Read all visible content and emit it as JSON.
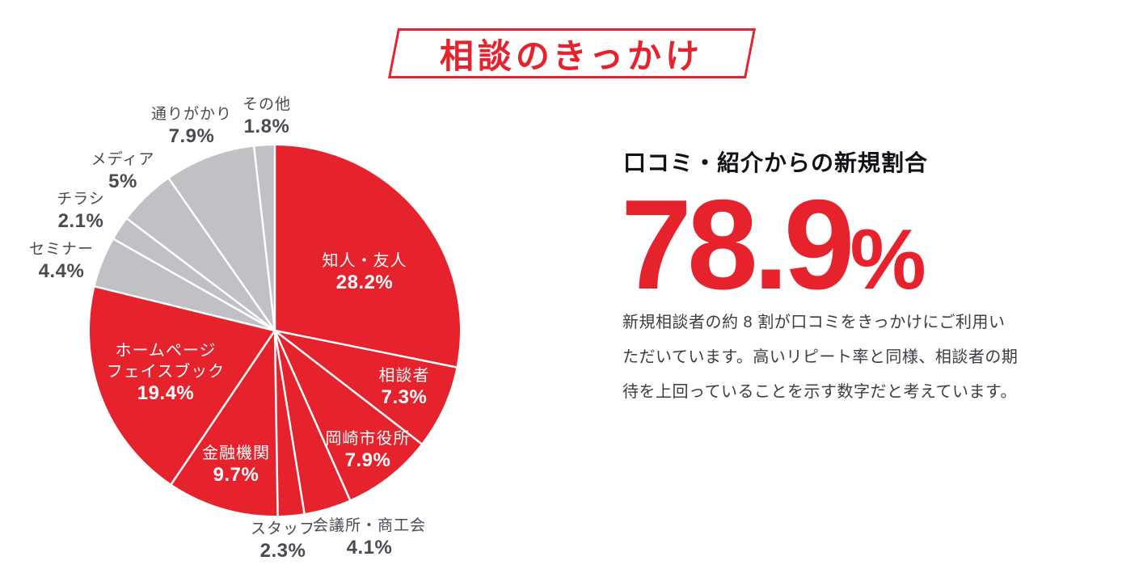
{
  "banner": {
    "title": "相談のきっかけ",
    "accent_color": "#e6232d"
  },
  "panel": {
    "heading": "口コミ・紹介からの新規割合",
    "big_value": "78.9",
    "big_unit": "%",
    "accent_color": "#e6232d",
    "body_lines": [
      "新規相談者の約 8 割が口コミをきっかけにご利用い",
      "ただいています。高いリピート率と同様、相談者の期",
      "待を上回っていることを示す数字だと考えています。"
    ]
  },
  "chart_data": {
    "type": "pie",
    "title": "相談のきっかけ",
    "unit": "%",
    "start_angle_deg": 0,
    "direction": "clockwise",
    "referral_total_pct": 78.9,
    "groups": {
      "referral_color": "#e6232d",
      "other_color": "#c1c1c5"
    },
    "slices": [
      {
        "label": "知人・友人",
        "value": 28.2,
        "display": "28.2%",
        "color": "#e6232d",
        "group": "referral",
        "label_placement": "inside"
      },
      {
        "label": "相談者",
        "value": 7.3,
        "display": "7.3%",
        "color": "#e6232d",
        "group": "referral",
        "label_placement": "inside"
      },
      {
        "label": "岡崎市役所",
        "value": 7.9,
        "display": "7.9%",
        "color": "#e6232d",
        "group": "referral",
        "label_placement": "inside"
      },
      {
        "label": "会議所・商工会",
        "value": 4.1,
        "display": "4.1%",
        "color": "#e6232d",
        "group": "referral",
        "label_placement": "outside"
      },
      {
        "label": "スタッフ",
        "value": 2.3,
        "display": "2.3%",
        "color": "#e6232d",
        "group": "referral",
        "label_placement": "outside"
      },
      {
        "label": "金融機関",
        "value": 9.7,
        "display": "9.7%",
        "color": "#e6232d",
        "group": "referral",
        "label_placement": "inside"
      },
      {
        "label": "ホームページ フェイスブック",
        "name_lines": [
          "ホームページ",
          "フェイスブック"
        ],
        "value": 19.4,
        "display": "19.4%",
        "color": "#e6232d",
        "group": "referral",
        "label_placement": "inside"
      },
      {
        "label": "セミナー",
        "value": 4.4,
        "display": "4.4%",
        "color": "#c1c1c5",
        "group": "other",
        "label_placement": "outside"
      },
      {
        "label": "チラシ",
        "value": 2.1,
        "display": "2.1%",
        "color": "#c1c1c5",
        "group": "other",
        "label_placement": "outside"
      },
      {
        "label": "メディア",
        "value": 5,
        "display": "5%",
        "color": "#c1c1c5",
        "group": "other",
        "label_placement": "outside"
      },
      {
        "label": "通りがかり",
        "value": 7.9,
        "display": "7.9%",
        "color": "#c1c1c5",
        "group": "other",
        "label_placement": "outside"
      },
      {
        "label": "その他",
        "value": 1.8,
        "display": "1.8%",
        "color": "#c1c1c5",
        "group": "other",
        "label_placement": "outside"
      }
    ]
  }
}
